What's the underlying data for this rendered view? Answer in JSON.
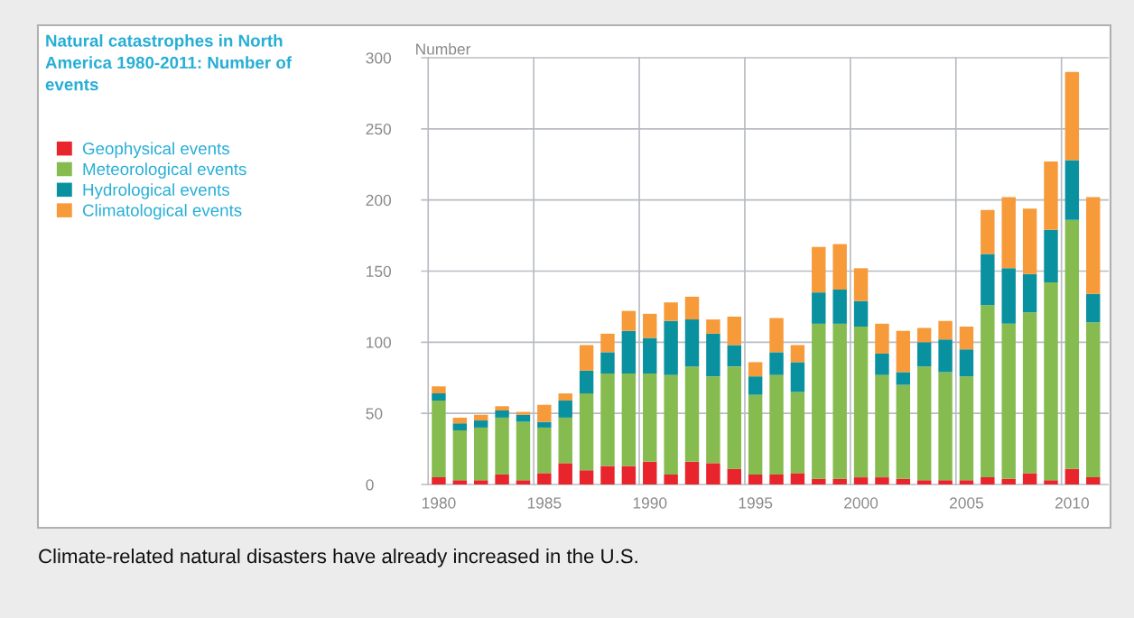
{
  "chart_data": {
    "type": "bar",
    "stacked": true,
    "title": "Natural catastrophes in North America 1980-2011: Number of events",
    "ylabel": "Number",
    "annotations": [
      "Climate-related natural disasters have already increased in the U.S."
    ],
    "categories": [
      "1980",
      null,
      null,
      null,
      null,
      "1985",
      null,
      null,
      null,
      null,
      "1990",
      null,
      null,
      null,
      null,
      "1995",
      null,
      null,
      null,
      null,
      "2000",
      null,
      null,
      null,
      null,
      "2005",
      null,
      null,
      null,
      null,
      "2010",
      null
    ],
    "series": [
      {
        "name": "Geophysical events",
        "color": "#e8242c",
        "values": [
          5,
          3,
          3,
          7,
          3,
          8,
          15,
          10,
          13,
          13,
          16,
          7,
          16,
          15,
          11,
          7,
          7,
          8,
          4,
          4,
          5,
          5,
          4,
          3,
          3,
          3,
          5,
          4,
          8,
          3,
          11,
          5
        ]
      },
      {
        "name": "Meteorological events",
        "color": "#86bc4f",
        "values": [
          54,
          35,
          37,
          40,
          41,
          32,
          32,
          54,
          65,
          65,
          62,
          70,
          67,
          61,
          72,
          56,
          70,
          57,
          109,
          109,
          106,
          72,
          66,
          80,
          76,
          73,
          121,
          109,
          113,
          139,
          175,
          109
        ]
      },
      {
        "name": "Hydrological events",
        "color": "#0a91a0",
        "values": [
          5,
          5,
          5,
          5,
          5,
          4,
          12,
          16,
          15,
          30,
          25,
          38,
          33,
          30,
          15,
          13,
          16,
          21,
          22,
          24,
          18,
          15,
          9,
          17,
          23,
          19,
          36,
          39,
          27,
          37,
          42,
          20
        ]
      },
      {
        "name": "Climatological events",
        "color": "#f79a3a",
        "values": [
          5,
          4,
          4,
          3,
          2,
          12,
          5,
          18,
          13,
          14,
          17,
          13,
          16,
          10,
          20,
          10,
          24,
          12,
          32,
          32,
          23,
          21,
          29,
          10,
          13,
          16,
          31,
          50,
          46,
          48,
          62,
          68
        ]
      }
    ],
    "ylim": [
      0,
      300
    ],
    "yticks": [
      0,
      50,
      100,
      150,
      200,
      250,
      300
    ],
    "grid": true,
    "legend": "left"
  }
}
